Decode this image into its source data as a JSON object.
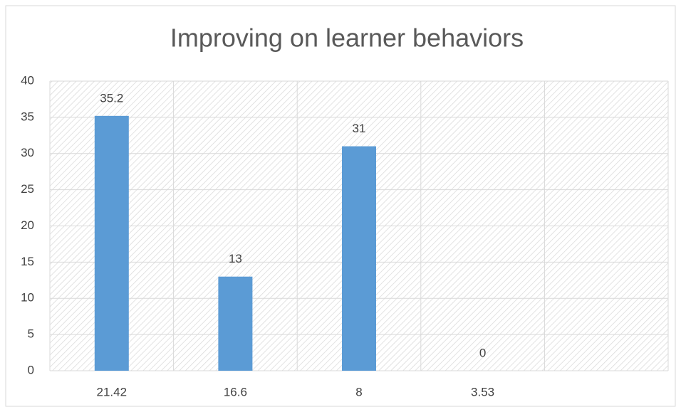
{
  "chart_data": {
    "type": "bar",
    "title": "Improving on learner behaviors",
    "categories": [
      "21.42",
      "16.6",
      "8",
      "3.53",
      null
    ],
    "values": [
      35.2,
      13,
      31,
      0,
      null
    ],
    "color": "#5b9bd5",
    "ylim": [
      0,
      40
    ],
    "yticks": [
      0,
      5,
      10,
      15,
      20,
      25,
      30,
      35,
      40
    ],
    "grid": true
  }
}
